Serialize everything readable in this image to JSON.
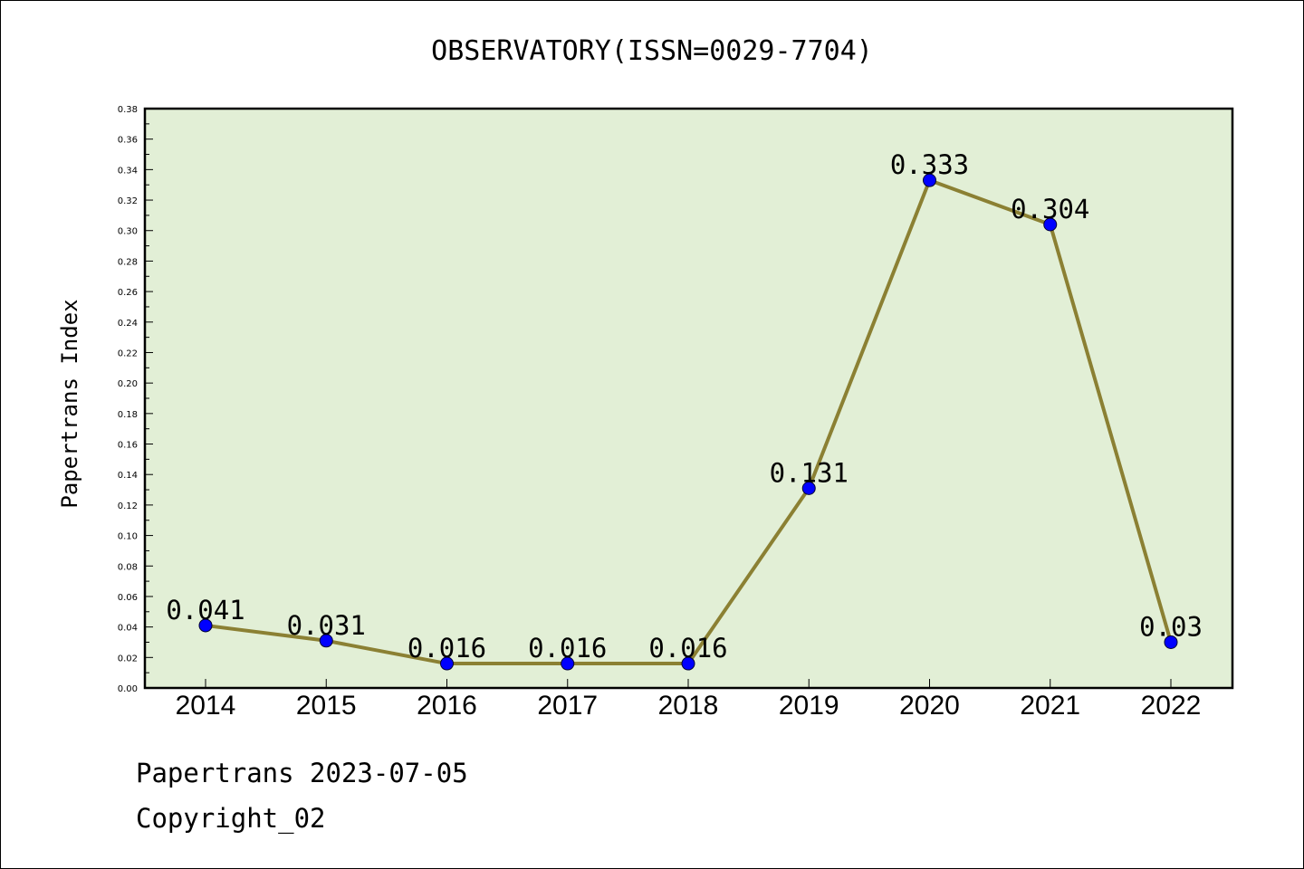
{
  "colors": {
    "plot_background": "#e2efd6",
    "line": "#8b8033",
    "marker": "#0000ff"
  },
  "chart_data": {
    "type": "line",
    "title": "OBSERVATORY(ISSN=0029-7704)",
    "xlabel": "",
    "ylabel": "Papertrans Index",
    "categories": [
      "2014",
      "2015",
      "2016",
      "2017",
      "2018",
      "2019",
      "2020",
      "2021",
      "2022"
    ],
    "values": [
      0.041,
      0.031,
      0.016,
      0.016,
      0.016,
      0.131,
      0.333,
      0.304,
      0.03
    ],
    "data_labels": [
      "0.041",
      "0.031",
      "0.016",
      "0.016",
      "0.016",
      "0.131",
      "0.333",
      "0.304",
      "0.03"
    ],
    "ylim": [
      0,
      0.38
    ],
    "yticks": [
      "0.00",
      "0.02",
      "0.04",
      "0.06",
      "0.08",
      "0.10",
      "0.12",
      "0.14",
      "0.16",
      "0.18",
      "0.20",
      "0.22",
      "0.24",
      "0.26",
      "0.28",
      "0.30",
      "0.32",
      "0.34",
      "0.36",
      "0.38"
    ],
    "grid": false,
    "legend": "none"
  },
  "footer": {
    "line1": "Papertrans 2023-07-05",
    "line2": "Copyright_02"
  }
}
